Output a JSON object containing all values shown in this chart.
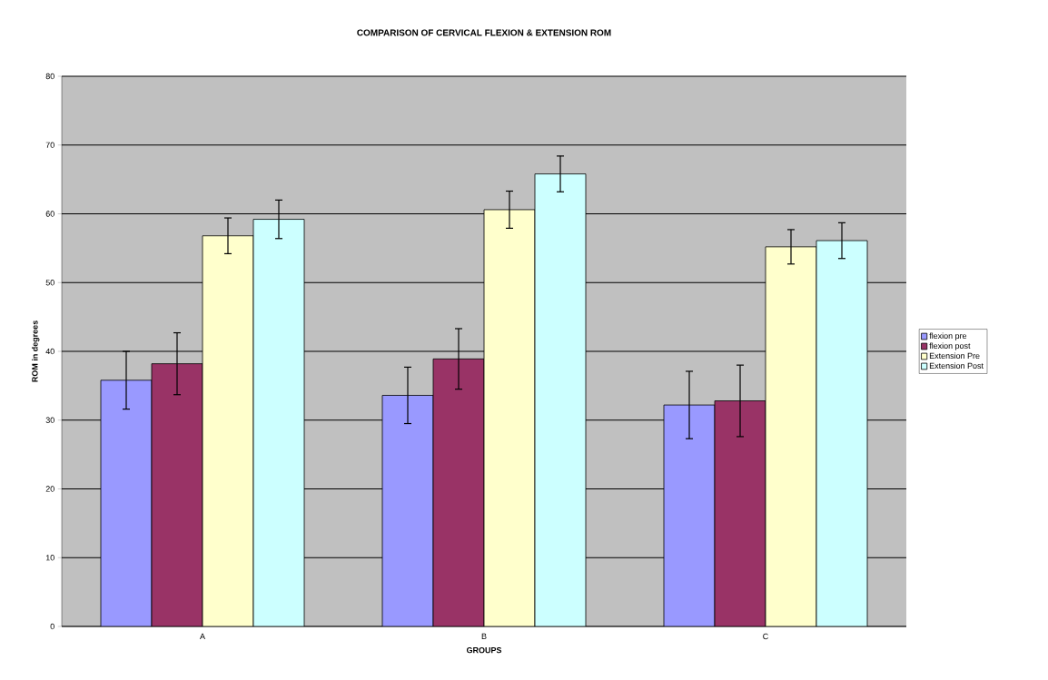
{
  "chart_data": {
    "type": "bar",
    "title": "COMPARISON OF CERVICAL FLEXION & EXTENSION ROM",
    "xlabel": "GROUPS",
    "ylabel": "ROM in degrees",
    "categories": [
      "A",
      "B",
      "C"
    ],
    "series": [
      {
        "name": "flexion pre",
        "color": "#9999ff",
        "values": [
          35.8,
          33.6,
          32.2
        ],
        "errors": [
          4.2,
          4.1,
          4.9
        ]
      },
      {
        "name": "flexion post",
        "color": "#993366",
        "values": [
          38.2,
          38.9,
          32.8
        ],
        "errors": [
          4.5,
          4.4,
          5.2
        ]
      },
      {
        "name": "Extension Pre",
        "color": "#ffffcc",
        "values": [
          56.8,
          60.6,
          55.2
        ],
        "errors": [
          2.6,
          2.7,
          2.5
        ]
      },
      {
        "name": "Extension Post",
        "color": "#ccffff",
        "values": [
          59.2,
          65.8,
          56.1
        ],
        "errors": [
          2.8,
          2.6,
          2.6
        ]
      }
    ],
    "ylim": [
      0,
      80
    ],
    "yticks": [
      0,
      10,
      20,
      30,
      40,
      50,
      60,
      70,
      80
    ],
    "grid": "y",
    "legend": "right"
  }
}
